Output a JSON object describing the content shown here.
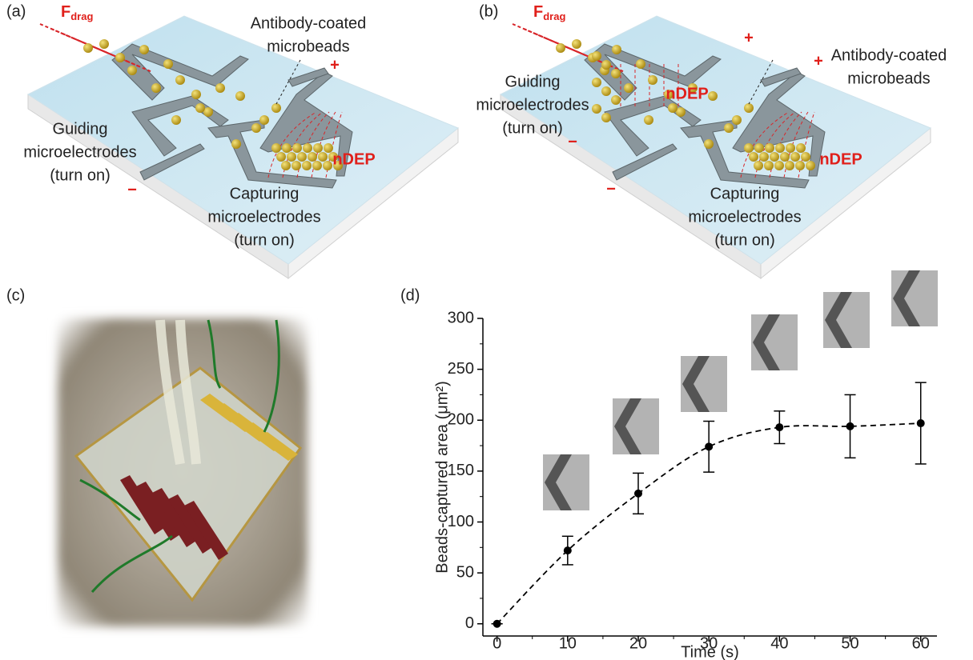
{
  "panels": [
    {
      "label": "(a)",
      "f_drag_symbol": "F",
      "f_drag_subscript": "drag",
      "beads_label": [
        "Antibody-coated",
        "microbeads"
      ],
      "guiding_label": [
        "Guiding",
        "microelectrodes",
        "(turn on)"
      ],
      "capturing_label": [
        "Capturing",
        "microelectrodes",
        "(turn on)"
      ],
      "ndep": [
        "nDEP"
      ],
      "plus": [
        "+"
      ],
      "minus": [
        "−"
      ]
    },
    {
      "label": "(b)",
      "f_drag_symbol": "F",
      "f_drag_subscript": "drag",
      "beads_label": [
        "Antibody-coated",
        "microbeads"
      ],
      "guiding_label": [
        "Guiding",
        "microelectrodes",
        "(turn on)"
      ],
      "capturing_label": [
        "Capturing",
        "microelectrodes",
        "(turn on)"
      ],
      "ndep": [
        "nDEP",
        "nDEP"
      ],
      "plus": [
        "+",
        "+"
      ],
      "minus": [
        "−",
        "−"
      ]
    },
    {
      "label": "(c)"
    }
  ],
  "chart_data": {
    "type": "line",
    "panel_label": "(d)",
    "x_label": "Time (s)",
    "y_label": "Beads-captured area (μm²)",
    "x": [
      0,
      10,
      20,
      30,
      40,
      50,
      60
    ],
    "series": [
      {
        "color": "#000000",
        "line_style": "dashed",
        "values": [
          0,
          72,
          128,
          174,
          193,
          194,
          197
        ],
        "errors": [
          0,
          14,
          20,
          25,
          16,
          31,
          40
        ]
      }
    ],
    "xlim": [
      -2,
      62.3
    ],
    "ylim": [
      -12,
      300
    ],
    "xticks": [
      0,
      10,
      20,
      30,
      40,
      50,
      60
    ],
    "yticks": [
      0,
      50,
      100,
      150,
      200,
      250,
      300
    ]
  }
}
